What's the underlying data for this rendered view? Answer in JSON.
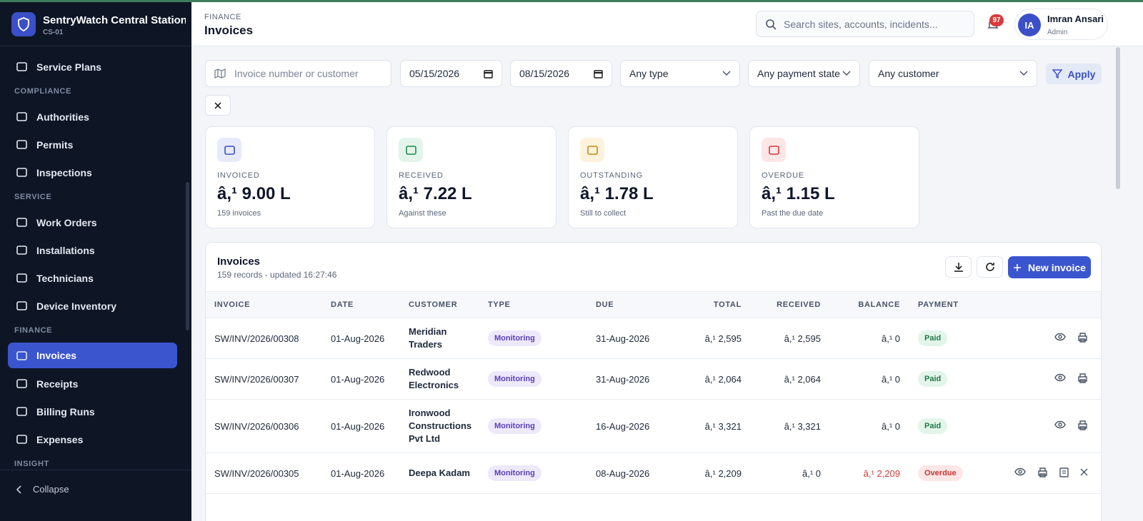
{
  "sidebar": {
    "brand": "SentryWatch Central Station",
    "code": "CS-01",
    "sections": [
      {
        "items": [
          {
            "label": "Service Plans"
          }
        ]
      },
      {
        "title": "COMPLIANCE",
        "items": [
          {
            "label": "Authorities"
          },
          {
            "label": "Permits"
          },
          {
            "label": "Inspections"
          }
        ]
      },
      {
        "title": "SERVICE",
        "items": [
          {
            "label": "Work Orders"
          },
          {
            "label": "Installations"
          },
          {
            "label": "Technicians"
          },
          {
            "label": "Device Inventory"
          }
        ]
      },
      {
        "title": "FINANCE",
        "items": [
          {
            "label": "Invoices",
            "active": true
          },
          {
            "label": "Receipts"
          },
          {
            "label": "Billing Runs"
          },
          {
            "label": "Expenses"
          }
        ]
      },
      {
        "title": "INSIGHT",
        "items": []
      }
    ],
    "collapse": "Collapse"
  },
  "header": {
    "section": "FINANCE",
    "title": "Invoices",
    "search_placeholder": "Search sites, accounts, incidents...",
    "notifications": "97",
    "user": {
      "initials": "IA",
      "name": "Imran Ansari",
      "role": "Admin"
    }
  },
  "filters": {
    "query_placeholder": "Invoice number or customer",
    "from": "05/15/2026",
    "to": "08/15/2026",
    "type": "Any type",
    "payment_state": "Any payment state",
    "customer": "Any customer",
    "apply": "Apply"
  },
  "stats": [
    {
      "label": "INVOICED",
      "value": "â,¹ 9.00 L",
      "note": "159 invoices",
      "tone": "blue"
    },
    {
      "label": "RECEIVED",
      "value": "â,¹ 7.22 L",
      "note": "Against these",
      "tone": "green"
    },
    {
      "label": "OUTSTANDING",
      "value": "â,¹ 1.78 L",
      "note": "Still to collect",
      "tone": "amber"
    },
    {
      "label": "OVERDUE",
      "value": "â,¹ 1.15 L",
      "note": "Past the due date",
      "tone": "red"
    }
  ],
  "table": {
    "title": "Invoices",
    "subtitle": "159 records - updated 16:27:46",
    "new_button": "New invoice",
    "columns": [
      "INVOICE",
      "DATE",
      "CUSTOMER",
      "TYPE",
      "DUE",
      "TOTAL",
      "RECEIVED",
      "BALANCE",
      "PAYMENT"
    ],
    "rows": [
      [
        "SW/INV/2026/00308",
        "01-Aug-2026",
        "Meridian Traders",
        "Monitoring",
        "31-Aug-2026",
        "â,¹ 2,595",
        "â,¹ 2,595",
        "â,¹ 0",
        "Paid"
      ],
      [
        "SW/INV/2026/00307",
        "01-Aug-2026",
        "Redwood Electronics",
        "Monitoring",
        "31-Aug-2026",
        "â,¹ 2,064",
        "â,¹ 2,064",
        "â,¹ 0",
        "Paid"
      ],
      [
        "SW/INV/2026/00306",
        "01-Aug-2026",
        "Ironwood Constructions Pvt Ltd",
        "Monitoring",
        "16-Aug-2026",
        "â,¹ 3,321",
        "â,¹ 3,321",
        "â,¹ 0",
        "Paid"
      ],
      [
        "SW/INV/2026/00305",
        "01-Aug-2026",
        "Deepa Kadam",
        "Monitoring",
        "08-Aug-2026",
        "â,¹ 2,209",
        "â,¹ 0",
        "â,¹ 2,209",
        "Overdue"
      ]
    ],
    "row_tones": [
      "success",
      "success",
      "success",
      "danger"
    ]
  }
}
